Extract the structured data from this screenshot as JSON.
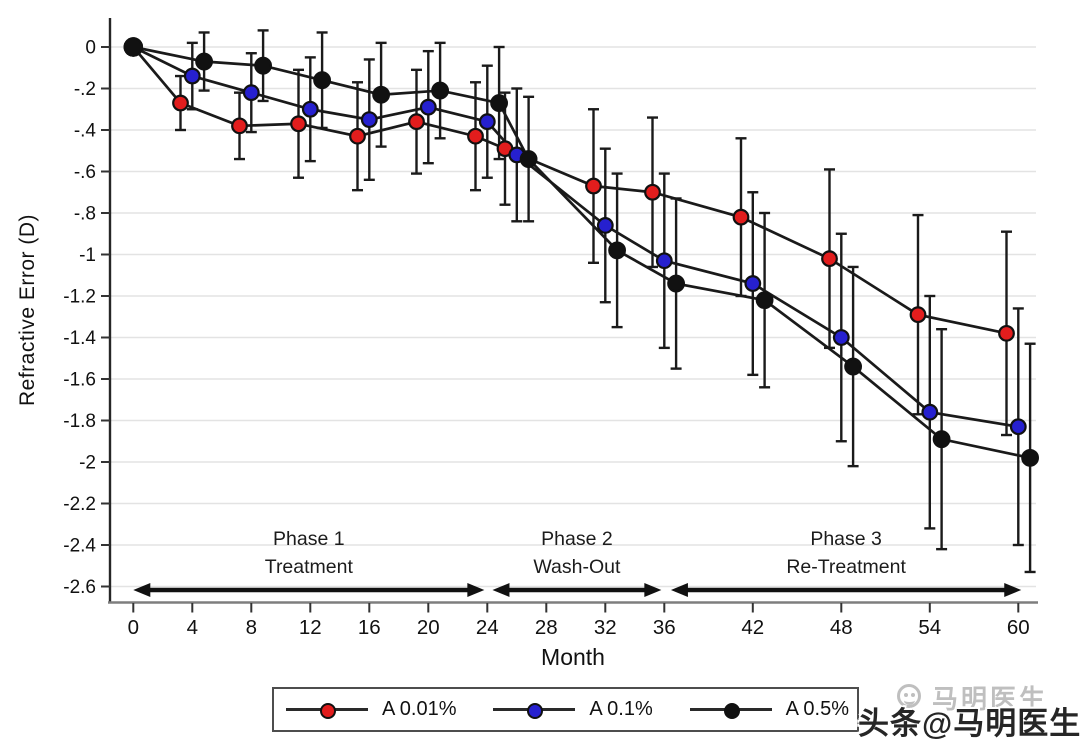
{
  "watermark": {
    "icon": "toutiao-face-icon",
    "ghost_text": "马明医生",
    "main_text": "头条@马明医生"
  },
  "chart_data": {
    "type": "line",
    "title": "",
    "xlabel": "Month",
    "ylabel": "Refractive Error (D)",
    "grid": "horizontal-only",
    "legend_position": "bottom",
    "xlim": [
      -1.6,
      61.5
    ],
    "ylim": [
      -2.68,
      0.14
    ],
    "x_ticks": [
      0,
      4,
      8,
      12,
      16,
      20,
      24,
      28,
      32,
      36,
      42,
      48,
      54,
      60
    ],
    "y_tick_labels": [
      "0",
      "-.2",
      "-.4",
      "-.6",
      "-.8",
      "-1",
      "-1.2",
      "-1.4",
      "-1.6",
      "-1.8",
      "-2",
      "-2.2",
      "-2.4",
      "-2.6"
    ],
    "y_tick_values": [
      0,
      -0.2,
      -0.4,
      -0.6,
      -0.8,
      -1.0,
      -1.2,
      -1.4,
      -1.6,
      -1.8,
      -2.0,
      -2.2,
      -2.4,
      -2.6
    ],
    "months": [
      0,
      4,
      8,
      12,
      16,
      20,
      24,
      26,
      32,
      36,
      42,
      48,
      54,
      60
    ],
    "series": [
      {
        "name": "A 0.01%",
        "color": "#e21d1d",
        "jitter": -0.8,
        "values": [
          0,
          -0.27,
          -0.38,
          -0.37,
          -0.43,
          -0.36,
          -0.43,
          -0.49,
          -0.67,
          -0.7,
          -0.82,
          -1.02,
          -1.29,
          -1.38
        ],
        "err": [
          0,
          0.13,
          0.16,
          0.26,
          0.26,
          0.25,
          0.26,
          0.27,
          0.37,
          0.36,
          0.38,
          0.43,
          0.48,
          0.49
        ]
      },
      {
        "name": "A 0.1%",
        "color": "#2620cf",
        "jitter": 0,
        "values": [
          0,
          -0.14,
          -0.22,
          -0.3,
          -0.35,
          -0.29,
          -0.36,
          -0.52,
          -0.86,
          -1.03,
          -1.14,
          -1.4,
          -1.76,
          -1.83
        ],
        "err": [
          0,
          0.16,
          0.19,
          0.25,
          0.29,
          0.27,
          0.27,
          0.32,
          0.37,
          0.42,
          0.44,
          0.5,
          0.56,
          0.57
        ]
      },
      {
        "name": "A 0.5%",
        "color": "#111111",
        "jitter": 0.8,
        "values": [
          0,
          -0.07,
          -0.09,
          -0.16,
          -0.23,
          -0.21,
          -0.27,
          -0.54,
          -0.98,
          -1.14,
          -1.22,
          -1.54,
          -1.89,
          -1.98
        ],
        "err": [
          0,
          0.14,
          0.17,
          0.23,
          0.25,
          0.23,
          0.27,
          0.3,
          0.37,
          0.41,
          0.42,
          0.48,
          0.53,
          0.55
        ]
      }
    ],
    "phases": [
      {
        "label_line1": "Phase 1",
        "label_line2": "Treatment",
        "x_start": 0.0,
        "x_end": 23.8
      },
      {
        "label_line1": "Phase 2",
        "label_line2": "Wash-Out",
        "x_start": 24.35,
        "x_end": 35.8
      },
      {
        "label_line1": "Phase 3",
        "label_line2": "Re-Treatment",
        "x_start": 36.45,
        "x_end": 60.2
      }
    ]
  }
}
